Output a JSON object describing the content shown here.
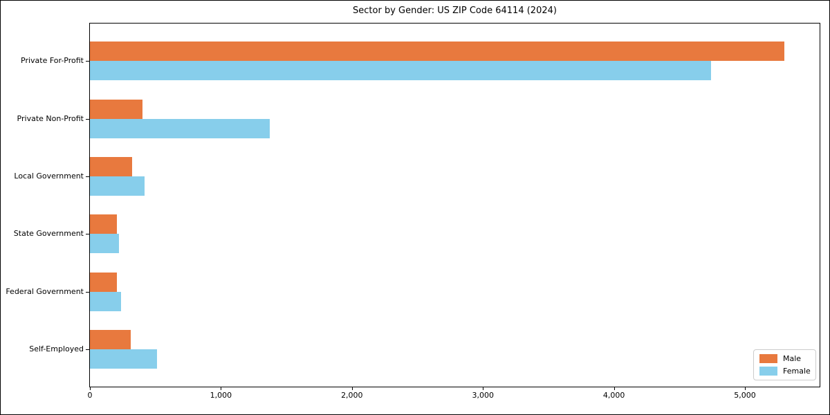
{
  "chart_data": {
    "type": "bar",
    "orientation": "horizontal",
    "title": "Sector by Gender: US ZIP Code 64114 (2024)",
    "categories": [
      "Private For-Profit",
      "Private Non-Profit",
      "Local Government",
      "State Government",
      "Federal Government",
      "Self-Employed"
    ],
    "series": [
      {
        "name": "Male",
        "color": "#E8793E",
        "values": [
          5300,
          400,
          320,
          205,
          205,
          310
        ]
      },
      {
        "name": "Female",
        "color": "#87CEEB",
        "values": [
          4740,
          1375,
          415,
          220,
          240,
          510
        ]
      }
    ],
    "xlabel": "",
    "ylabel": "",
    "xlim": [
      0,
      5570
    ],
    "xticks": [
      0,
      1000,
      2000,
      3000,
      4000,
      5000
    ],
    "xtick_labels": [
      "0",
      "1,000",
      "2,000",
      "3,000",
      "4,000",
      "5,000"
    ],
    "grid": false,
    "legend": {
      "position": "lower right",
      "entries": [
        "Male",
        "Female"
      ]
    }
  }
}
